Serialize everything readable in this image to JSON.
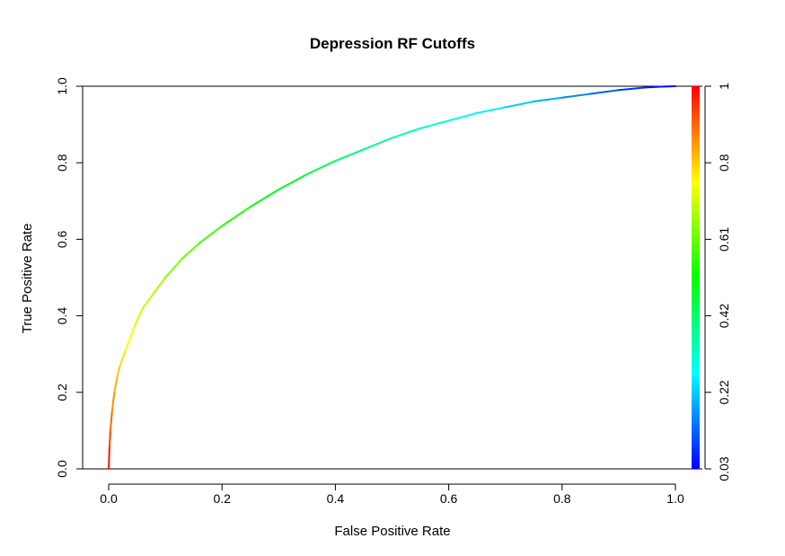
{
  "chart_data": {
    "type": "line",
    "title": "Depression RF Cutoffs",
    "xlabel": "False Positive Rate",
    "ylabel": "True Positive Rate",
    "xlim": [
      0.0,
      1.0
    ],
    "ylim": [
      0.0,
      1.0
    ],
    "grid": false,
    "x_ticks": [
      "0.0",
      "0.2",
      "0.4",
      "0.6",
      "0.8",
      "1.0"
    ],
    "y_ticks": [
      "0.0",
      "0.2",
      "0.4",
      "0.6",
      "0.8",
      "1.0"
    ],
    "colorbar": {
      "ticks": [
        "0.03",
        "0.22",
        "0.42",
        "0.61",
        "0.8",
        "1"
      ],
      "colors": [
        "#0000ff",
        "#00ffff",
        "#00ff00",
        "#ffff00",
        "#ff0000"
      ]
    },
    "series": [
      {
        "x": [
          0.0,
          0.0015,
          0.003,
          0.006,
          0.01,
          0.015,
          0.02,
          0.03,
          0.045,
          0.06,
          0.08,
          0.1,
          0.13,
          0.16,
          0.2,
          0.25,
          0.3,
          0.35,
          0.4,
          0.45,
          0.5,
          0.55,
          0.6,
          0.65,
          0.7,
          0.75,
          0.8,
          0.85,
          0.9,
          0.95,
          0.98,
          1.0
        ],
        "y": [
          0.0,
          0.06,
          0.1,
          0.15,
          0.2,
          0.24,
          0.27,
          0.31,
          0.37,
          0.42,
          0.46,
          0.5,
          0.55,
          0.59,
          0.635,
          0.685,
          0.73,
          0.77,
          0.805,
          0.835,
          0.865,
          0.89,
          0.91,
          0.93,
          0.945,
          0.96,
          0.97,
          0.98,
          0.99,
          0.997,
          0.999,
          1.0
        ],
        "cutoff": [
          1.0,
          0.96,
          0.92,
          0.88,
          0.85,
          0.82,
          0.8,
          0.77,
          0.74,
          0.71,
          0.68,
          0.66,
          0.63,
          0.6,
          0.57,
          0.53,
          0.49,
          0.46,
          0.42,
          0.39,
          0.36,
          0.33,
          0.3,
          0.27,
          0.24,
          0.21,
          0.18,
          0.14,
          0.1,
          0.06,
          0.04,
          0.03
        ]
      }
    ]
  }
}
